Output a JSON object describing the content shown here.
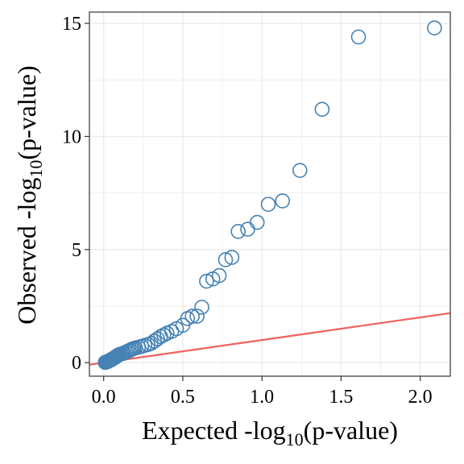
{
  "chart_data": {
    "type": "scatter",
    "title": "",
    "xlabel": {
      "prefix": "Expected -log",
      "sub": "10",
      "suffix": "(p-value)"
    },
    "ylabel": {
      "prefix": "Observed -log",
      "sub": "10",
      "suffix": "(p-value)"
    },
    "xlim": [
      -0.09,
      2.19
    ],
    "ylim": [
      -0.6,
      15.5
    ],
    "xticks": [
      0.0,
      0.5,
      1.0,
      1.5,
      2.0
    ],
    "xtick_labels": [
      "0.0",
      "0.5",
      "1.0",
      "1.5",
      "2.0"
    ],
    "yticks": [
      0,
      5,
      10,
      15
    ],
    "ytick_labels": [
      "0",
      "5",
      "10",
      "15"
    ],
    "grid": true,
    "colors": {
      "points": "#4682b4",
      "reference_line": "#f0605d",
      "grid": "#ebebeb",
      "axis": "#333333"
    },
    "reference_line": {
      "slope": 1,
      "intercept": 0
    },
    "points": [
      {
        "x": 0.01,
        "y": 0.01
      },
      {
        "x": 0.015,
        "y": 0.02
      },
      {
        "x": 0.02,
        "y": 0.03
      },
      {
        "x": 0.025,
        "y": 0.05
      },
      {
        "x": 0.03,
        "y": 0.06
      },
      {
        "x": 0.035,
        "y": 0.08
      },
      {
        "x": 0.04,
        "y": 0.1
      },
      {
        "x": 0.045,
        "y": 0.12
      },
      {
        "x": 0.05,
        "y": 0.14
      },
      {
        "x": 0.055,
        "y": 0.16
      },
      {
        "x": 0.06,
        "y": 0.18
      },
      {
        "x": 0.065,
        "y": 0.2
      },
      {
        "x": 0.07,
        "y": 0.22
      },
      {
        "x": 0.075,
        "y": 0.25
      },
      {
        "x": 0.08,
        "y": 0.27
      },
      {
        "x": 0.085,
        "y": 0.3
      },
      {
        "x": 0.09,
        "y": 0.32
      },
      {
        "x": 0.095,
        "y": 0.34
      },
      {
        "x": 0.1,
        "y": 0.36
      },
      {
        "x": 0.11,
        "y": 0.38
      },
      {
        "x": 0.12,
        "y": 0.4
      },
      {
        "x": 0.13,
        "y": 0.43
      },
      {
        "x": 0.14,
        "y": 0.46
      },
      {
        "x": 0.15,
        "y": 0.5
      },
      {
        "x": 0.16,
        "y": 0.53
      },
      {
        "x": 0.17,
        "y": 0.56
      },
      {
        "x": 0.18,
        "y": 0.6
      },
      {
        "x": 0.19,
        "y": 0.62
      },
      {
        "x": 0.2,
        "y": 0.65
      },
      {
        "x": 0.22,
        "y": 0.68
      },
      {
        "x": 0.24,
        "y": 0.72
      },
      {
        "x": 0.26,
        "y": 0.76
      },
      {
        "x": 0.28,
        "y": 0.8
      },
      {
        "x": 0.3,
        "y": 0.85
      },
      {
        "x": 0.32,
        "y": 0.95
      },
      {
        "x": 0.34,
        "y": 1.05
      },
      {
        "x": 0.36,
        "y": 1.15
      },
      {
        "x": 0.38,
        "y": 1.22
      },
      {
        "x": 0.4,
        "y": 1.3
      },
      {
        "x": 0.43,
        "y": 1.38
      },
      {
        "x": 0.46,
        "y": 1.5
      },
      {
        "x": 0.5,
        "y": 1.65
      },
      {
        "x": 0.53,
        "y": 1.95
      },
      {
        "x": 0.56,
        "y": 2.05
      },
      {
        "x": 0.59,
        "y": 2.05
      },
      {
        "x": 0.62,
        "y": 2.45
      },
      {
        "x": 0.65,
        "y": 3.6
      },
      {
        "x": 0.69,
        "y": 3.7
      },
      {
        "x": 0.73,
        "y": 3.85
      },
      {
        "x": 0.77,
        "y": 4.55
      },
      {
        "x": 0.81,
        "y": 4.65
      },
      {
        "x": 0.85,
        "y": 5.8
      },
      {
        "x": 0.91,
        "y": 5.9
      },
      {
        "x": 0.97,
        "y": 6.2
      },
      {
        "x": 1.04,
        "y": 7.0
      },
      {
        "x": 1.13,
        "y": 7.15
      },
      {
        "x": 1.24,
        "y": 8.5
      },
      {
        "x": 1.38,
        "y": 11.2
      },
      {
        "x": 1.61,
        "y": 14.4
      },
      {
        "x": 2.09,
        "y": 14.8
      }
    ]
  }
}
